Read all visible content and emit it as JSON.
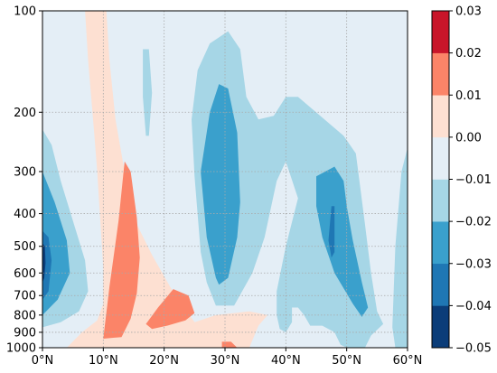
{
  "chart_data": {
    "type": "heatmap",
    "subtype": "filled-contour",
    "title": "",
    "xlabel": "",
    "ylabel": "",
    "x_axis": {
      "min": 0,
      "max": 60,
      "ticks": [
        0,
        10,
        20,
        30,
        40,
        50,
        60
      ],
      "tick_labels": [
        "0°N",
        "10°N",
        "20°N",
        "30°N",
        "40°N",
        "50°N",
        "60°N"
      ]
    },
    "y_axis": {
      "scale": "log",
      "reversed": true,
      "min": 100,
      "max": 1000,
      "ticks": [
        100,
        200,
        300,
        400,
        500,
        600,
        700,
        800,
        900,
        1000
      ],
      "tick_labels": [
        "100",
        "200",
        "300",
        "400",
        "500",
        "600",
        "700",
        "800",
        "900",
        "1000"
      ]
    },
    "grid": true,
    "background_level": "-0.01 to 0.00",
    "colorbar": {
      "position": "right",
      "levels": [
        -0.05,
        -0.04,
        -0.03,
        -0.02,
        -0.01,
        0.0,
        0.01,
        0.02,
        0.03
      ],
      "tick_labels": [
        "−0.05",
        "−0.04",
        "−0.03",
        "−0.02",
        "−0.01",
        "0.00",
        "0.01",
        "0.02",
        "0.03"
      ],
      "colors": [
        "#0b3d79",
        "#1f77b4",
        "#3aa0cc",
        "#a6d6e6",
        "#e4eef6",
        "#fde0d2",
        "#fb8468",
        "#c8152a"
      ]
    },
    "regions": [
      {
        "level": "-0.02 to -0.01",
        "points": [
          [
            0,
            225
          ],
          [
            1.5,
            250
          ],
          [
            3,
            320
          ],
          [
            5,
            420
          ],
          [
            7,
            550
          ],
          [
            7.5,
            680
          ],
          [
            6,
            780
          ],
          [
            3,
            840
          ],
          [
            0,
            870
          ]
        ]
      },
      {
        "level": "-0.02 to -0.01",
        "points": [
          [
            16.5,
            130
          ],
          [
            17.5,
            130
          ],
          [
            18,
            175
          ],
          [
            17.5,
            235
          ],
          [
            17,
            235
          ],
          [
            16.5,
            180
          ]
        ]
      },
      {
        "level": "-0.02 to -0.01",
        "points": [
          [
            25,
            310
          ],
          [
            24.5,
            210
          ],
          [
            25.5,
            150
          ],
          [
            27.5,
            125
          ],
          [
            30.5,
            115
          ],
          [
            32.5,
            130
          ],
          [
            33.5,
            180
          ],
          [
            35.5,
            210
          ],
          [
            38,
            205
          ],
          [
            40,
            180
          ],
          [
            42,
            180
          ],
          [
            47,
            215
          ],
          [
            49.5,
            235
          ],
          [
            51.5,
            265
          ],
          [
            52,
            310
          ],
          [
            53,
            430
          ],
          [
            54,
            600
          ],
          [
            55,
            780
          ],
          [
            56,
            850
          ],
          [
            54,
            920
          ],
          [
            53,
            1000
          ],
          [
            50,
            1000
          ],
          [
            49,
            980
          ],
          [
            48,
            900
          ],
          [
            46,
            860
          ],
          [
            44,
            860
          ],
          [
            43,
            800
          ],
          [
            42,
            760
          ],
          [
            41,
            760
          ],
          [
            41,
            840
          ],
          [
            40,
            900
          ],
          [
            39,
            880
          ],
          [
            38.5,
            800
          ],
          [
            38.5,
            680
          ],
          [
            40,
            500
          ],
          [
            42,
            360
          ],
          [
            40,
            280
          ],
          [
            38.5,
            320
          ],
          [
            36.5,
            470
          ],
          [
            34.5,
            600
          ],
          [
            31.5,
            750
          ],
          [
            28.5,
            750
          ],
          [
            27,
            640
          ],
          [
            26,
            520
          ]
        ]
      },
      {
        "level": "-0.02 to -0.01",
        "points": [
          [
            59,
            300
          ],
          [
            60,
            255
          ],
          [
            60,
            1000
          ],
          [
            58,
            1000
          ],
          [
            57.5,
            870
          ],
          [
            58,
            500
          ]
        ]
      },
      {
        "level": "-0.03 to -0.02",
        "points": [
          [
            0,
            300
          ],
          [
            2,
            370
          ],
          [
            4,
            480
          ],
          [
            4.5,
            600
          ],
          [
            2.5,
            720
          ],
          [
            0,
            800
          ]
        ]
      },
      {
        "level": "-0.03 to -0.02",
        "points": [
          [
            26,
            300
          ],
          [
            27.5,
            200
          ],
          [
            29,
            165
          ],
          [
            30.5,
            170
          ],
          [
            32,
            230
          ],
          [
            32.5,
            370
          ],
          [
            32,
            470
          ],
          [
            30.5,
            620
          ],
          [
            29,
            650
          ],
          [
            28.5,
            620
          ],
          [
            27,
            470
          ]
        ]
      },
      {
        "level": "-0.03 to -0.02",
        "points": [
          [
            45,
            310
          ],
          [
            48,
            290
          ],
          [
            49.5,
            320
          ],
          [
            50,
            380
          ],
          [
            51,
            480
          ],
          [
            52.5,
            640
          ],
          [
            53.5,
            760
          ],
          [
            52.5,
            810
          ],
          [
            51,
            740
          ],
          [
            48,
            600
          ],
          [
            46,
            470
          ],
          [
            45,
            380
          ]
        ]
      },
      {
        "level": "-0.04 to -0.03",
        "points": [
          [
            0,
            450
          ],
          [
            1,
            470
          ],
          [
            1.5,
            550
          ],
          [
            1,
            680
          ],
          [
            0,
            720
          ]
        ]
      },
      {
        "level": "-0.04 to -0.03",
        "points": [
          [
            47.5,
            380
          ],
          [
            48,
            380
          ],
          [
            48,
            520
          ],
          [
            47.5,
            540
          ],
          [
            47,
            480
          ]
        ]
      },
      {
        "level": "-0.05 to -0.04",
        "points": [
          [
            0,
            490
          ],
          [
            0.4,
            500
          ],
          [
            0.5,
            560
          ],
          [
            0.3,
            620
          ],
          [
            0,
            640
          ]
        ]
      },
      {
        "level": "0.00 to 0.01",
        "points": [
          [
            7,
            100
          ],
          [
            10.5,
            100
          ],
          [
            11,
            140
          ],
          [
            12,
            210
          ],
          [
            13.5,
            300
          ],
          [
            15.5,
            430
          ],
          [
            18,
            530
          ],
          [
            21,
            660
          ],
          [
            25,
            840
          ],
          [
            28.5,
            800
          ],
          [
            34,
            780
          ],
          [
            37,
            800
          ],
          [
            35.5,
            860
          ],
          [
            34,
            1000
          ],
          [
            4,
            1000
          ],
          [
            6.5,
            900
          ],
          [
            9,
            830
          ],
          [
            10,
            740
          ],
          [
            10,
            580
          ],
          [
            9.5,
            420
          ],
          [
            9,
            300
          ],
          [
            8.5,
            230
          ],
          [
            7.5,
            140
          ]
        ]
      },
      {
        "level": "0.00 to 0.01",
        "points": [
          [
            24.5,
            1000
          ],
          [
            25.5,
            920
          ],
          [
            27,
            880
          ],
          [
            28.5,
            860
          ],
          [
            30.5,
            860
          ],
          [
            32,
            880
          ],
          [
            32,
            960
          ],
          [
            31,
            1000
          ]
        ]
      },
      {
        "level": "0.01 to 0.02",
        "points": [
          [
            10,
            940
          ],
          [
            11,
            660
          ],
          [
            12.5,
            420
          ],
          [
            13.5,
            280
          ],
          [
            14.5,
            300
          ],
          [
            15.5,
            410
          ],
          [
            16,
            540
          ],
          [
            15.5,
            690
          ],
          [
            14.5,
            820
          ],
          [
            13,
            930
          ]
        ]
      },
      {
        "level": "0.01 to 0.02",
        "points": [
          [
            17,
            850
          ],
          [
            19,
            760
          ],
          [
            21.5,
            670
          ],
          [
            24,
            700
          ],
          [
            25,
            790
          ],
          [
            23.5,
            830
          ],
          [
            20.5,
            860
          ],
          [
            18,
            880
          ]
        ]
      },
      {
        "level": "0.01 to 0.02",
        "points": [
          [
            29.5,
            1000
          ],
          [
            29.5,
            960
          ],
          [
            31,
            960
          ],
          [
            32,
            1000
          ]
        ]
      }
    ]
  }
}
